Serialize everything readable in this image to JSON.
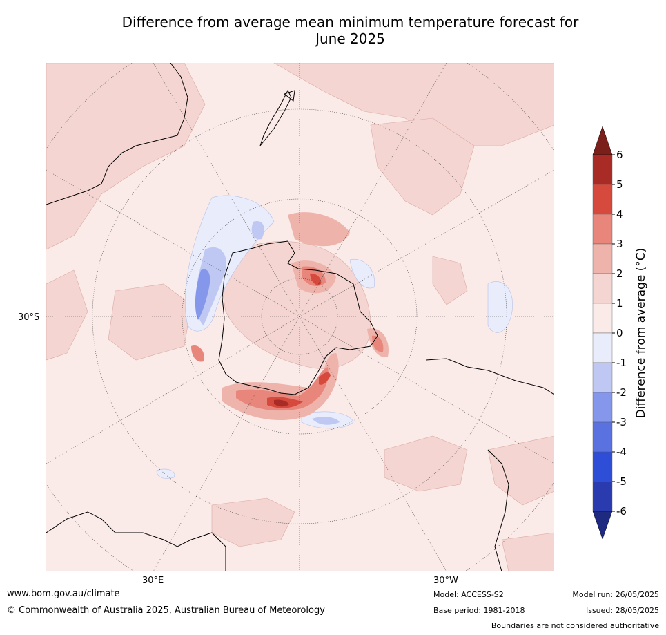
{
  "title": {
    "line1": "Difference from average mean minimum temperature forecast for",
    "line2": "June 2025"
  },
  "map": {
    "projection": "south-polar-stereographic",
    "ocean_color": "#fbebe8",
    "lat_label_left": "30°S",
    "lon_label_bottom_left": "30°E",
    "lon_label_bottom_right": "30°W"
  },
  "legend": {
    "label": "Difference from average (°C)",
    "ticks": [
      "6",
      "5",
      "4",
      "3",
      "2",
      "1",
      "0",
      "-1",
      "-2",
      "-3",
      "-4",
      "-5",
      "-6"
    ],
    "bins": [
      {
        "range": "5 to 6",
        "color": "#a92b25"
      },
      {
        "range": "4 to 5",
        "color": "#d64a3d"
      },
      {
        "range": "3 to 4",
        "color": "#e8867c"
      },
      {
        "range": "2 to 3",
        "color": "#eeb3ab"
      },
      {
        "range": "1 to 2",
        "color": "#f4d5d1"
      },
      {
        "range": "0 to 1",
        "color": "#fbebe8"
      },
      {
        "range": "-1 to 0",
        "color": "#e8ecfb"
      },
      {
        "range": "-2 to -1",
        "color": "#bfc8f2"
      },
      {
        "range": "-3 to -2",
        "color": "#8597ea"
      },
      {
        "range": "-4 to -3",
        "color": "#5a72e0"
      },
      {
        "range": "-5 to -4",
        "color": "#2f4ed8"
      },
      {
        "range": "-6 to -5",
        "color": "#2a3bb0"
      }
    ],
    "extend_high_color": "#7a1f1a",
    "extend_low_color": "#1e2a80"
  },
  "footer": {
    "website": "www.bom.gov.au/climate",
    "copyright": "© Commonwealth of Australia 2025, Australian Bureau of Meteorology",
    "model": "Model: ACCESS-S2",
    "base_period": "Base period: 1981-2018",
    "model_run": "Model run: 26/05/2025",
    "issued": "Issued: 28/05/2025",
    "disclaimer": "Boundaries are not considered authoritative"
  }
}
